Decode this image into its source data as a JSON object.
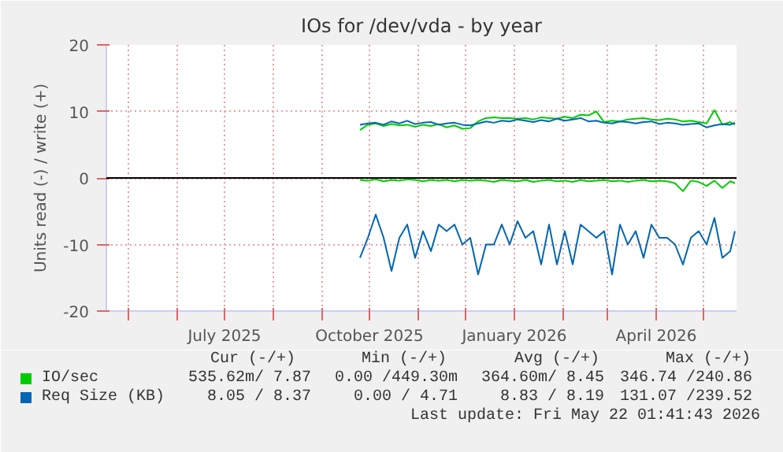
{
  "chart_data": {
    "type": "line",
    "title": "IOs for /dev/vda - by year",
    "ylabel": "Units read (-) / write (+)",
    "x": [
      "2025-09-25",
      "2025-09-30",
      "2025-10-05",
      "2025-10-10",
      "2025-10-15",
      "2025-10-20",
      "2025-10-25",
      "2025-10-30",
      "2025-11-04",
      "2025-11-09",
      "2025-11-14",
      "2025-11-19",
      "2025-11-24",
      "2025-11-29",
      "2025-12-04",
      "2025-12-09",
      "2025-12-14",
      "2025-12-19",
      "2025-12-24",
      "2025-12-29",
      "2026-01-03",
      "2026-01-08",
      "2026-01-13",
      "2026-01-18",
      "2026-01-23",
      "2026-01-28",
      "2026-02-02",
      "2026-02-07",
      "2026-02-12",
      "2026-02-17",
      "2026-02-22",
      "2026-02-27",
      "2026-03-04",
      "2026-03-09",
      "2026-03-14",
      "2026-03-19",
      "2026-03-24",
      "2026-03-29",
      "2026-04-03",
      "2026-04-08",
      "2026-04-13",
      "2026-04-18",
      "2026-04-23",
      "2026-04-28",
      "2026-05-03",
      "2026-05-08",
      "2026-05-13",
      "2026-05-18",
      "2026-05-21"
    ],
    "series": [
      {
        "name": "IO/sec",
        "color": "#00cc00",
        "values": [
          7.2,
          8.0,
          8.2,
          7.8,
          8.1,
          7.9,
          8.0,
          7.7,
          8.0,
          7.8,
          8.1,
          7.6,
          7.9,
          7.4,
          7.5,
          8.5,
          9.0,
          9.1,
          9.0,
          9.0,
          8.9,
          9.0,
          8.8,
          9.1,
          9.0,
          8.9,
          9.2,
          9.0,
          9.5,
          9.4,
          10.0,
          8.4,
          8.6,
          8.5,
          8.8,
          8.9,
          9.0,
          8.8,
          8.7,
          8.9,
          8.8,
          8.5,
          8.6,
          8.4,
          8.2,
          10.2,
          8.0,
          8.4,
          8.0
        ]
      },
      {
        "color": "#00cc00",
        "values": [
          -0.3,
          -0.4,
          -0.2,
          -0.5,
          -0.3,
          -0.4,
          -0.2,
          -0.3,
          -0.5,
          -0.3,
          -0.4,
          -0.3,
          -0.5,
          -0.3,
          -0.4,
          -0.3,
          -0.4,
          -0.6,
          -0.3,
          -0.4,
          -0.5,
          -0.3,
          -0.6,
          -0.4,
          -0.3,
          -0.5,
          -0.4,
          -0.6,
          -0.3,
          -0.5,
          -0.4,
          -0.3,
          -0.5,
          -0.4,
          -0.6,
          -0.4,
          -0.3,
          -0.5,
          -0.4,
          -0.5,
          -0.8,
          -2.0,
          -0.4,
          -0.6,
          -1.2,
          -0.4,
          -1.5,
          -0.5,
          -0.8
        ]
      },
      {
        "name": "Req Size (KB)",
        "color": "#0066b3",
        "values": [
          8.0,
          8.2,
          8.3,
          8.0,
          8.5,
          8.2,
          8.6,
          8.1,
          8.3,
          8.4,
          8.0,
          8.2,
          8.3,
          8.0,
          7.9,
          8.2,
          8.5,
          8.3,
          8.6,
          8.5,
          8.8,
          8.6,
          8.4,
          8.7,
          8.5,
          8.9,
          8.6,
          8.8,
          9.0,
          8.5,
          8.6,
          8.3,
          8.2,
          8.5,
          8.4,
          8.2,
          8.4,
          8.5,
          8.1,
          8.3,
          8.2,
          8.0,
          8.1,
          8.2,
          7.6,
          7.9,
          8.1,
          8.0,
          8.3
        ]
      },
      {
        "color": "#0066b3",
        "values": [
          -12,
          -9,
          -5.5,
          -9,
          -14,
          -9,
          -7,
          -12,
          -8,
          -11,
          -7,
          -8,
          -7,
          -10,
          -9,
          -14.5,
          -10,
          -10,
          -7,
          -10,
          -6.5,
          -9,
          -8,
          -13,
          -7,
          -13,
          -8,
          -13,
          -7,
          -8,
          -9,
          -8,
          -14.5,
          -7,
          -10,
          -8,
          -12,
          -7,
          -9,
          -9,
          -10,
          -13,
          -9,
          -8,
          -10,
          -6,
          -12,
          -11,
          -8
        ]
      }
    ],
    "xlim": [
      "2025-04-17",
      "2026-05-22"
    ],
    "xticks": [
      {
        "value": "2025-05-01",
        "label": null
      },
      {
        "value": "2025-06-01",
        "label": null
      },
      {
        "value": "2025-07-01",
        "label": "July 2025"
      },
      {
        "value": "2025-08-01",
        "label": null
      },
      {
        "value": "2025-09-01",
        "label": null
      },
      {
        "value": "2025-10-01",
        "label": "October 2025"
      },
      {
        "value": "2025-11-01",
        "label": null
      },
      {
        "value": "2025-12-01",
        "label": null
      },
      {
        "value": "2026-01-01",
        "label": "January 2026"
      },
      {
        "value": "2026-02-01",
        "label": null
      },
      {
        "value": "2026-03-01",
        "label": null
      },
      {
        "value": "2026-04-01",
        "label": "April 2026"
      },
      {
        "value": "2026-05-01",
        "label": null
      }
    ],
    "ylim": [
      -20,
      20
    ],
    "yticks": [
      -20,
      -10,
      0,
      10,
      20
    ],
    "ref_lines": [
      {
        "axis": "y",
        "value": 0,
        "color": "#000000"
      }
    ],
    "grid": true,
    "legend": "bottom",
    "annotations": [
      "Cur (-/+)",
      "Min (-/+)",
      "Avg (-/+)",
      "Max (-/+)",
      "535.62m/ 7.87",
      "0.00 /449.30m",
      "364.60m/ 8.45",
      "346.74 /240.86",
      "8.05 / 8.37",
      "0.00 / 4.71",
      "8.83 / 8.19",
      "131.07 /239.52",
      "Last update: Fri May 22 01:41:43 2026"
    ]
  }
}
